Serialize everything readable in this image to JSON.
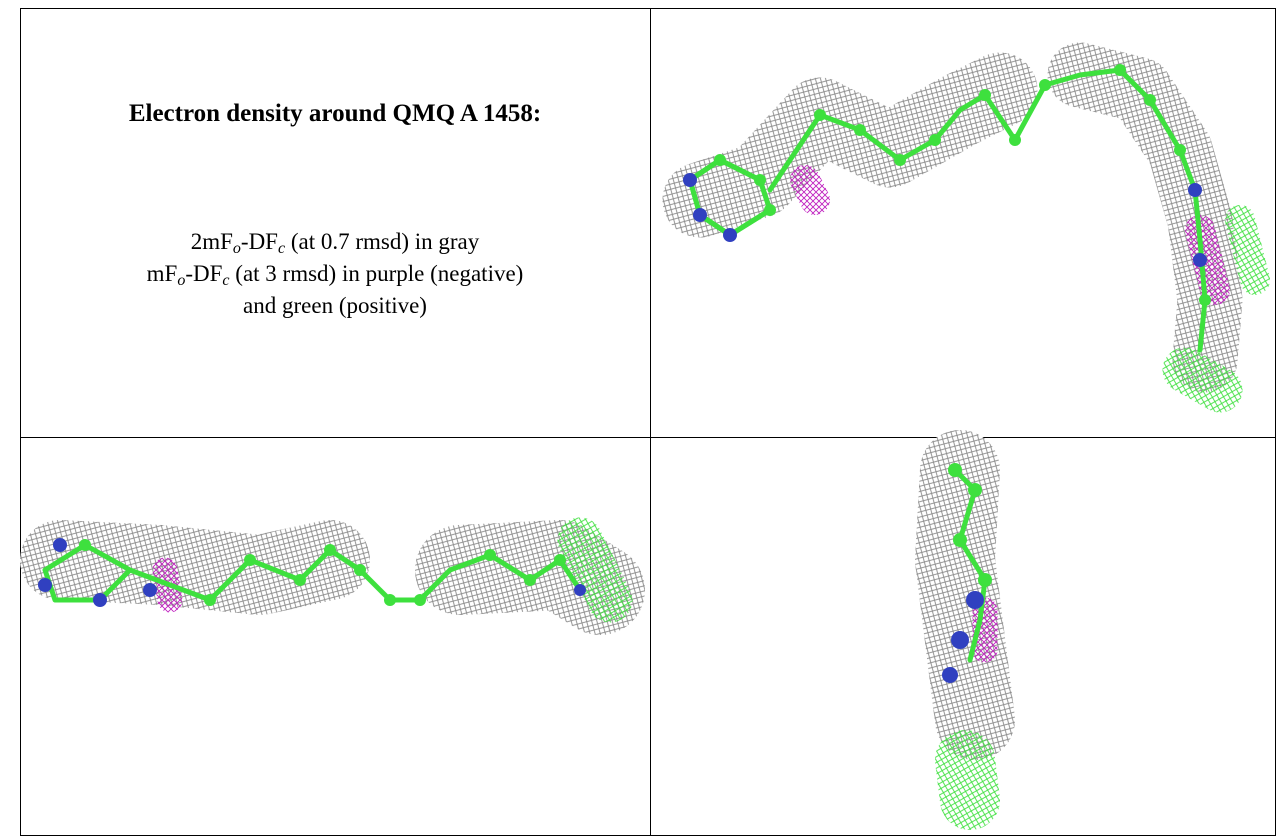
{
  "caption": {
    "title": "Electron density around QMQ A 1458:",
    "lines": [
      [
        "2mF",
        "o",
        "-DF",
        "c",
        " (at 0.7 rmsd) in gray"
      ],
      [
        "mF",
        "o",
        "-DF",
        "c",
        " (at 3 rmsd) in purple (negative)"
      ],
      [
        "and green (positive)"
      ]
    ]
  }
}
